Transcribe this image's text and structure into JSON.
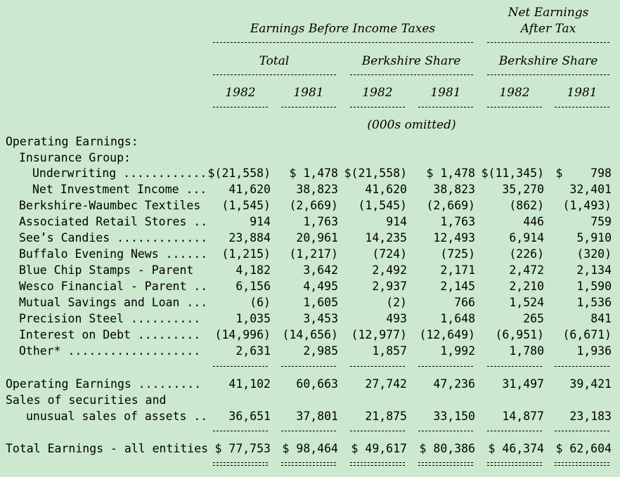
{
  "header": {
    "ebit": "Earnings Before Income Taxes",
    "net_line1": "Net Earnings",
    "net_line2": "After Tax",
    "total": "Total",
    "bshare1": "Berkshire Share",
    "bshare2": "Berkshire Share",
    "years": [
      "1982",
      "1981",
      "1982",
      "1981",
      "1982",
      "1981"
    ],
    "omitted": "(000s omitted)"
  },
  "section": {
    "operating": "Operating Earnings:",
    "insurance": "Insurance Group:"
  },
  "rows": [
    {
      "label": "Underwriting ............",
      "vals": [
        "$(21,558)",
        "$ 1,478",
        "$(21,558)",
        "$ 1,478",
        "$(11,345)",
        "$    798"
      ]
    },
    {
      "label": "Net Investment Income ...",
      "vals": [
        "41,620",
        "38,823",
        "41,620",
        "38,823",
        "35,270",
        "32,401"
      ]
    },
    {
      "label": "Berkshire-Waumbec Textiles",
      "vals": [
        "(1,545)",
        "(2,669)",
        "(1,545)",
        "(2,669)",
        "(862)",
        "(1,493)"
      ]
    },
    {
      "label": "Associated Retail Stores ..",
      "vals": [
        "914",
        "1,763",
        "914",
        "1,763",
        "446",
        "759"
      ]
    },
    {
      "label": "See’s Candies .............",
      "vals": [
        "23,884",
        "20,961",
        "14,235",
        "12,493",
        "6,914",
        "5,910"
      ]
    },
    {
      "label": "Buffalo Evening News ......",
      "vals": [
        "(1,215)",
        "(1,217)",
        "(724)",
        "(725)",
        "(226)",
        "(320)"
      ]
    },
    {
      "label": "Blue Chip Stamps - Parent",
      "vals": [
        "4,182",
        "3,642",
        "2,492",
        "2,171",
        "2,472",
        "2,134"
      ]
    },
    {
      "label": "Wesco Financial - Parent ..",
      "vals": [
        "6,156",
        "4,495",
        "2,937",
        "2,145",
        "2,210",
        "1,590"
      ]
    },
    {
      "label": "Mutual Savings and Loan ...",
      "vals": [
        "(6)",
        "1,605",
        "(2)",
        "766",
        "1,524",
        "1,536"
      ]
    },
    {
      "label": "Precision Steel ..........",
      "vals": [
        "1,035",
        "3,453",
        "493",
        "1,648",
        "265",
        "841"
      ]
    },
    {
      "label": "Interest on Debt .........",
      "vals": [
        "(14,996)",
        "(14,656)",
        "(12,977)",
        "(12,649)",
        "(6,951)",
        "(6,671)"
      ]
    },
    {
      "label": "Other* ...................",
      "vals": [
        "2,631",
        "2,985",
        "1,857",
        "1,992",
        "1,780",
        "1,936"
      ]
    }
  ],
  "operating_total": {
    "label": "Operating Earnings .........",
    "vals": [
      "41,102",
      "60,663",
      "27,742",
      "47,236",
      "31,497",
      "39,421"
    ]
  },
  "securities": {
    "label1": "Sales of securities and",
    "label2": "unusual sales of assets ..",
    "vals": [
      "36,651",
      "37,801",
      "21,875",
      "33,150",
      "14,877",
      "23,183"
    ]
  },
  "grand_total": {
    "label": "Total Earnings - all entities",
    "vals": [
      "$ 77,753",
      "$ 98,464",
      "$ 49,617",
      "$ 80,386",
      "$ 46,374",
      "$ 62,604"
    ]
  }
}
